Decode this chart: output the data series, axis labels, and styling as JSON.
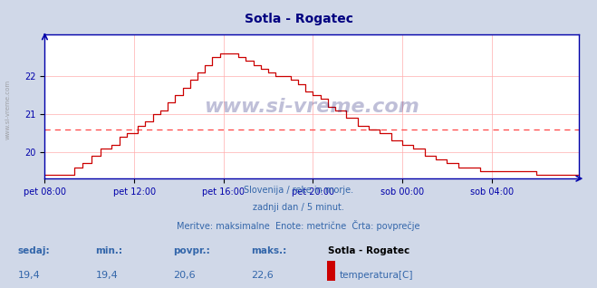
{
  "title": "Sotla - Rogatec",
  "title_color": "#000080",
  "bg_color": "#d0d8e8",
  "plot_bg_color": "#ffffff",
  "line_color": "#cc0000",
  "avg_line_color": "#ff4444",
  "avg_value": 20.6,
  "y_min": 19.3,
  "y_max": 23.1,
  "y_ticks": [
    20,
    21,
    22
  ],
  "x_labels": [
    "pet 08:00",
    "pet 12:00",
    "pet 16:00",
    "pet 20:00",
    "sob 00:00",
    "sob 04:00"
  ],
  "x_tick_positions": [
    0,
    48,
    96,
    144,
    192,
    240
  ],
  "total_points": 288,
  "watermark": "www.si-vreme.com",
  "subtitle1": "Slovenija / reke in morje.",
  "subtitle2": "zadnji dan / 5 minut.",
  "subtitle3": "Meritve: maksimalne  Enote: metrične  Črta: povprečje",
  "footer_label1": "sedaj:",
  "footer_label2": "min.:",
  "footer_label3": "povpr.:",
  "footer_label4": "maks.:",
  "footer_val1": "19,4",
  "footer_val2": "19,4",
  "footer_val3": "20,6",
  "footer_val4": "22,6",
  "footer_station": "Sotla - Rogatec",
  "footer_param": "temperatura[C]",
  "legend_color": "#cc0000",
  "grid_color": "#ffaaaa",
  "axis_color": "#0000aa",
  "subtitle_color": "#3366aa",
  "sidebar_text": "www.si-vreme.com"
}
